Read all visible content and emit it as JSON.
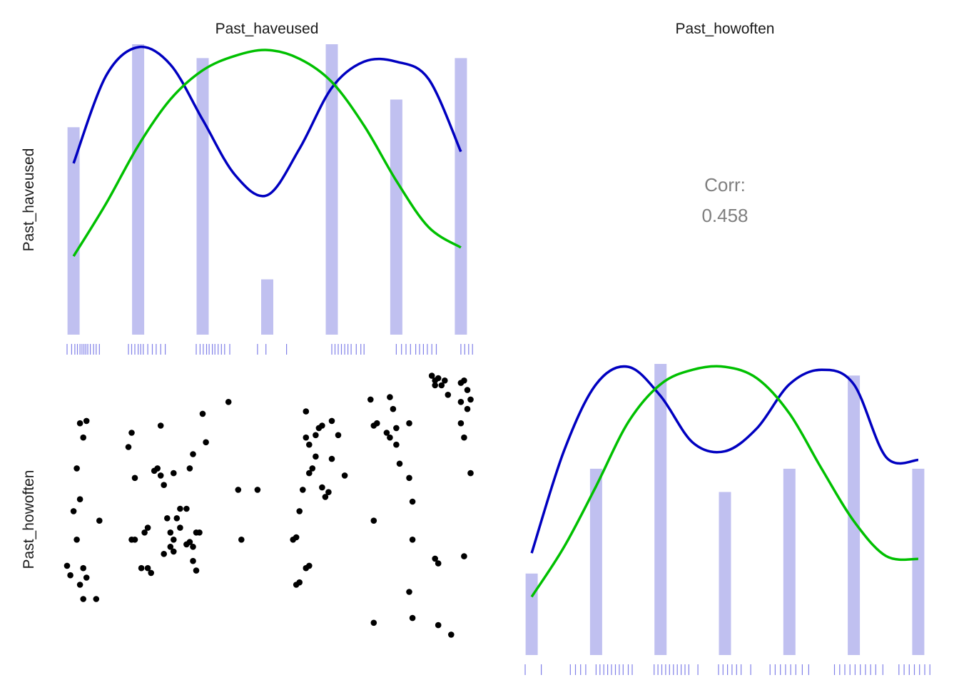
{
  "chart_data": {
    "type": "scatter",
    "variables": [
      "Past_haveused",
      "Past_howoften"
    ],
    "correlation": {
      "label": "Corr:",
      "value": "0.458"
    },
    "colors": {
      "bars": "#c0c0f0",
      "rug": "#8080e8",
      "kde": "#0000c0",
      "normal": "#00c000",
      "points": "#000000"
    },
    "diag": [
      {
        "name": "Past_haveused",
        "xlim": [
          0.8,
          7.2
        ],
        "ymax": 21,
        "categories": [
          1,
          2,
          3,
          4,
          5,
          6,
          7
        ],
        "counts": [
          15,
          21,
          20,
          4,
          21,
          17,
          20
        ],
        "kde": [
          [
            1,
            0.59
          ],
          [
            1.5,
            0.89
          ],
          [
            2,
            0.99
          ],
          [
            2.5,
            0.93
          ],
          [
            3,
            0.74
          ],
          [
            3.5,
            0.55
          ],
          [
            4,
            0.48
          ],
          [
            4.5,
            0.64
          ],
          [
            5,
            0.85
          ],
          [
            5.5,
            0.94
          ],
          [
            6,
            0.94
          ],
          [
            6.5,
            0.88
          ],
          [
            7,
            0.63
          ]
        ],
        "normal": [
          [
            1,
            0.27
          ],
          [
            1.5,
            0.45
          ],
          [
            2,
            0.65
          ],
          [
            2.5,
            0.81
          ],
          [
            3,
            0.91
          ],
          [
            3.5,
            0.96
          ],
          [
            4,
            0.98
          ],
          [
            4.5,
            0.95
          ],
          [
            5,
            0.87
          ],
          [
            5.5,
            0.72
          ],
          [
            6,
            0.53
          ],
          [
            6.5,
            0.37
          ],
          [
            7,
            0.3
          ]
        ],
        "rug": [
          0.9,
          0.97,
          1.02,
          1.06,
          1.1,
          1.13,
          1.16,
          1.19,
          1.22,
          1.26,
          1.31,
          1.35,
          1.4,
          1.85,
          1.9,
          1.95,
          2,
          2.04,
          2.08,
          2.15,
          2.22,
          2.28,
          2.35,
          2.42,
          2.9,
          2.96,
          3.01,
          3.06,
          3.1,
          3.15,
          3.19,
          3.24,
          3.29,
          3.34,
          3.42,
          3.85,
          3.98,
          4.3,
          5.0,
          5.05,
          5.1,
          5.15,
          5.2,
          5.25,
          5.3,
          5.38,
          5.45,
          5.5,
          6.0,
          6.08,
          6.15,
          6.22,
          6.3,
          6.36,
          6.42,
          6.48,
          6.55,
          6.62,
          7.0,
          7.06,
          7.12,
          7.18,
          7.22,
          7.26,
          7.3,
          7.35,
          7.4,
          7.45,
          7.5,
          7.55,
          7.6,
          7.65,
          7.7
        ]
      },
      {
        "name": "Past_howoften",
        "xlim": [
          0.8,
          7.2
        ],
        "ymax": 25,
        "categories": [
          1,
          2,
          3,
          4,
          5,
          6,
          7
        ],
        "counts": [
          7,
          16,
          25,
          14,
          16,
          24,
          16
        ],
        "kde": [
          [
            1,
            0.35
          ],
          [
            1.5,
            0.7
          ],
          [
            2,
            0.93
          ],
          [
            2.5,
            0.99
          ],
          [
            3,
            0.89
          ],
          [
            3.5,
            0.73
          ],
          [
            4,
            0.7
          ],
          [
            4.5,
            0.78
          ],
          [
            5,
            0.93
          ],
          [
            5.5,
            0.98
          ],
          [
            6,
            0.93
          ],
          [
            6.5,
            0.68
          ],
          [
            7,
            0.67
          ]
        ],
        "normal": [
          [
            1,
            0.2
          ],
          [
            1.5,
            0.37
          ],
          [
            2,
            0.58
          ],
          [
            2.5,
            0.8
          ],
          [
            3,
            0.93
          ],
          [
            3.5,
            0.98
          ],
          [
            4,
            0.99
          ],
          [
            4.5,
            0.95
          ],
          [
            5,
            0.83
          ],
          [
            5.5,
            0.64
          ],
          [
            6,
            0.46
          ],
          [
            6.5,
            0.34
          ],
          [
            7,
            0.33
          ]
        ],
        "rug": [
          0.9,
          1.15,
          1.6,
          1.68,
          1.76,
          1.84,
          2.0,
          2.06,
          2.12,
          2.18,
          2.24,
          2.3,
          2.36,
          2.42,
          2.5,
          2.56,
          2.9,
          2.96,
          3.02,
          3.08,
          3.14,
          3.2,
          3.26,
          3.32,
          3.38,
          3.44,
          3.58,
          3.9,
          3.97,
          4.04,
          4.11,
          4.18,
          4.25,
          4.4,
          4.7,
          4.78,
          4.86,
          4.94,
          5.02,
          5.1,
          5.2,
          5.3,
          5.7,
          5.78,
          5.86,
          5.94,
          6.02,
          6.1,
          6.18,
          6.26,
          6.34,
          6.45,
          6.7,
          6.78,
          6.86,
          6.94,
          7.02,
          7.1,
          7.18,
          7.26,
          7.34,
          7.4
        ]
      }
    ],
    "scatter": {
      "x_var": "Past_haveused",
      "y_var": "Past_howoften",
      "xlim": [
        0.8,
        7.2
      ],
      "ylim": [
        0.75,
        7.3
      ],
      "points": [
        [
          1.2,
          6.1
        ],
        [
          1.1,
          6.05
        ],
        [
          1.15,
          5.75
        ],
        [
          1.05,
          5.1
        ],
        [
          1.1,
          4.45
        ],
        [
          1.0,
          4.2
        ],
        [
          1.05,
          3.6
        ],
        [
          0.9,
          3.05
        ],
        [
          1.15,
          3.0
        ],
        [
          0.95,
          2.85
        ],
        [
          1.2,
          2.8
        ],
        [
          1.1,
          2.65
        ],
        [
          1.15,
          2.35
        ],
        [
          1.35,
          2.35
        ],
        [
          1.4,
          4.0
        ],
        [
          1.85,
          5.55
        ],
        [
          1.9,
          5.85
        ],
        [
          1.95,
          4.9
        ],
        [
          1.95,
          3.6
        ],
        [
          1.9,
          3.6
        ],
        [
          2.1,
          3.75
        ],
        [
          2.15,
          3.85
        ],
        [
          2.05,
          3.0
        ],
        [
          2.15,
          3.0
        ],
        [
          2.2,
          2.9
        ],
        [
          2.25,
          5.05
        ],
        [
          2.3,
          5.1
        ],
        [
          2.35,
          6.0
        ],
        [
          2.4,
          3.3
        ],
        [
          2.55,
          3.6
        ],
        [
          2.5,
          3.45
        ],
        [
          2.55,
          3.35
        ],
        [
          2.35,
          4.95
        ],
        [
          2.4,
          4.75
        ],
        [
          2.45,
          4.05
        ],
        [
          2.5,
          3.75
        ],
        [
          2.6,
          4.05
        ],
        [
          2.65,
          3.85
        ],
        [
          2.65,
          4.25
        ],
        [
          2.75,
          4.25
        ],
        [
          2.75,
          3.5
        ],
        [
          2.85,
          3.45
        ],
        [
          2.8,
          3.55
        ],
        [
          2.9,
          3.75
        ],
        [
          2.95,
          3.75
        ],
        [
          2.85,
          3.15
        ],
        [
          2.9,
          2.95
        ],
        [
          2.85,
          5.4
        ],
        [
          2.8,
          5.1
        ],
        [
          2.55,
          5.0
        ],
        [
          3.0,
          6.25
        ],
        [
          3.05,
          5.65
        ],
        [
          3.4,
          6.5
        ],
        [
          3.55,
          4.65
        ],
        [
          3.6,
          3.6
        ],
        [
          3.85,
          4.65
        ],
        [
          4.6,
          6.3
        ],
        [
          4.55,
          4.65
        ],
        [
          4.5,
          4.2
        ],
        [
          4.45,
          3.65
        ],
        [
          4.4,
          3.6
        ],
        [
          4.6,
          5.75
        ],
        [
          4.65,
          5.6
        ],
        [
          4.75,
          5.8
        ],
        [
          4.8,
          5.95
        ],
        [
          4.85,
          6.0
        ],
        [
          4.65,
          5.0
        ],
        [
          4.7,
          5.1
        ],
        [
          4.75,
          5.35
        ],
        [
          4.85,
          4.7
        ],
        [
          4.9,
          4.5
        ],
        [
          4.95,
          4.6
        ],
        [
          4.5,
          2.7
        ],
        [
          4.45,
          2.65
        ],
        [
          4.6,
          3.0
        ],
        [
          4.65,
          3.05
        ],
        [
          5.0,
          5.3
        ],
        [
          5.0,
          6.1
        ],
        [
          5.1,
          5.8
        ],
        [
          5.2,
          4.95
        ],
        [
          5.6,
          6.55
        ],
        [
          5.9,
          6.6
        ],
        [
          5.95,
          6.35
        ],
        [
          5.7,
          6.05
        ],
        [
          5.65,
          6.0
        ],
        [
          5.85,
          5.85
        ],
        [
          5.9,
          5.75
        ],
        [
          6.0,
          5.95
        ],
        [
          6.0,
          5.6
        ],
        [
          6.05,
          5.2
        ],
        [
          6.2,
          6.05
        ],
        [
          6.2,
          4.9
        ],
        [
          6.25,
          4.4
        ],
        [
          5.65,
          4.0
        ],
        [
          6.55,
          7.05
        ],
        [
          6.6,
          6.95
        ],
        [
          6.65,
          7.0
        ],
        [
          6.6,
          6.85
        ],
        [
          6.7,
          6.85
        ],
        [
          6.75,
          6.95
        ],
        [
          6.8,
          6.65
        ],
        [
          7.0,
          6.9
        ],
        [
          7.05,
          6.95
        ],
        [
          7.0,
          6.5
        ],
        [
          7.0,
          6.05
        ],
        [
          7.1,
          6.75
        ],
        [
          7.15,
          6.55
        ],
        [
          7.1,
          6.35
        ],
        [
          7.05,
          5.75
        ],
        [
          7.15,
          5.0
        ],
        [
          6.25,
          3.6
        ],
        [
          6.2,
          2.5
        ],
        [
          6.25,
          1.95
        ],
        [
          6.6,
          3.2
        ],
        [
          6.65,
          3.1
        ],
        [
          6.65,
          1.8
        ],
        [
          6.85,
          1.6
        ],
        [
          7.05,
          3.25
        ],
        [
          5.65,
          1.85
        ]
      ]
    }
  }
}
